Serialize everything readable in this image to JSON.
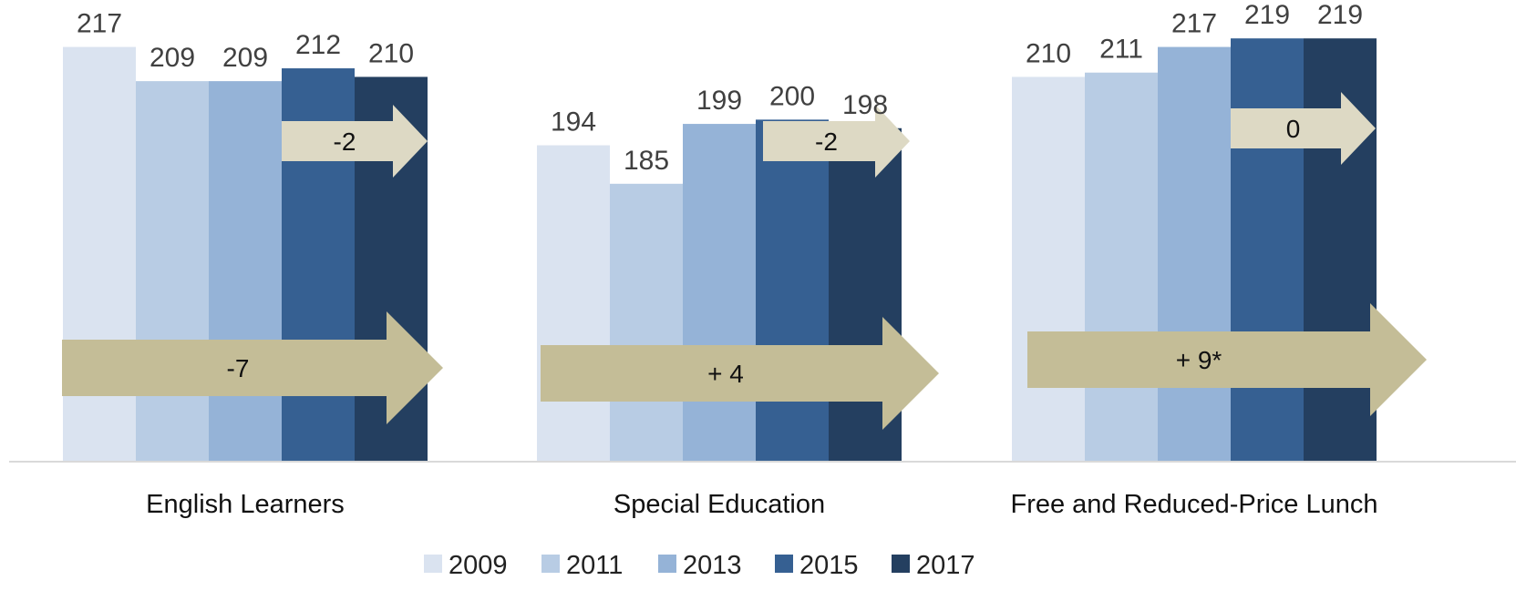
{
  "chart_data": {
    "type": "bar",
    "categories": [
      "English Learners",
      "Special Education",
      "Free and Reduced-Price Lunch"
    ],
    "series": [
      {
        "name": "2009",
        "color": "#DAE3F0",
        "values": [
          217,
          194,
          210
        ]
      },
      {
        "name": "2011",
        "color": "#B8CCE4",
        "values": [
          209,
          185,
          211
        ]
      },
      {
        "name": "2013",
        "color": "#95B3D7",
        "values": [
          209,
          199,
          217
        ]
      },
      {
        "name": "2015",
        "color": "#366092",
        "values": [
          212,
          200,
          219
        ]
      },
      {
        "name": "2017",
        "color": "#243F60",
        "values": [
          210,
          198,
          219
        ]
      }
    ],
    "ylim": [
      120,
      225
    ],
    "grid": false,
    "legend_position": "bottom",
    "annotations": {
      "short_change": [
        "-2",
        "-2",
        "0"
      ],
      "long_change": [
        "-7",
        "+ 4",
        "+ 9*"
      ],
      "short_arrow_color": "#DDD9C4",
      "long_arrow_color": "#C4BD97"
    }
  }
}
